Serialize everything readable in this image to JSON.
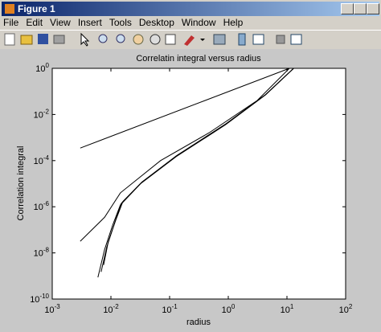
{
  "window": {
    "title": "Figure 1",
    "menu": [
      "File",
      "Edit",
      "View",
      "Insert",
      "Tools",
      "Desktop",
      "Window",
      "Help"
    ]
  },
  "chart_data": {
    "type": "line",
    "title": "Correlatin integral versus radius",
    "x_label": "radius",
    "y_label": "Correlation integral",
    "log_x": true,
    "log_y": true,
    "grid": false,
    "xlim": [
      0.001,
      100
    ],
    "ylim": [
      1e-10,
      1
    ],
    "xticks": [
      {
        "value": 0.001,
        "label": "10",
        "exponent": "-3"
      },
      {
        "value": 0.01,
        "label": "10",
        "exponent": "-2"
      },
      {
        "value": 0.1,
        "label": "10",
        "exponent": "-1"
      },
      {
        "value": 1,
        "label": "10",
        "exponent": "0"
      },
      {
        "value": 10,
        "label": "10",
        "exponent": "1"
      },
      {
        "value": 100,
        "label": "10",
        "exponent": "2"
      }
    ],
    "yticks": [
      {
        "value": 1e-10,
        "label": "10",
        "exponent": "-10"
      },
      {
        "value": 1e-08,
        "label": "10",
        "exponent": "-8"
      },
      {
        "value": 1e-06,
        "label": "10",
        "exponent": "-6"
      },
      {
        "value": 0.0001,
        "label": "10",
        "exponent": "-4"
      },
      {
        "value": 0.01,
        "label": "10",
        "exponent": "-2"
      },
      {
        "value": 1,
        "label": "10",
        "exponent": "0"
      }
    ],
    "series": [
      {
        "color": "#000000",
        "x": [
          0.003,
          11
        ],
        "values": [
          0.00035,
          1
        ]
      },
      {
        "color": "#000000",
        "x": [
          0.003,
          0.0078,
          0.0145,
          0.07,
          0.47,
          3.1,
          11
        ],
        "values": [
          3.2e-08,
          3.5e-07,
          4e-06,
          0.0001,
          0.0016,
          0.04,
          1
        ]
      },
      {
        "color": "#000000",
        "x": [
          0.006,
          0.0078,
          0.0107,
          0.0145,
          0.032,
          0.13,
          0.9,
          4.3,
          13
        ],
        "values": [
          8.7e-10,
          1.4e-08,
          1.6e-07,
          1.2e-06,
          1e-05,
          0.00015,
          0.0036,
          0.07,
          1
        ]
      },
      {
        "color": "#000000",
        "x": [
          0.0068,
          0.0085,
          0.0115,
          0.015,
          0.033,
          0.13,
          0.9,
          4.3,
          13
        ],
        "values": [
          1.5e-09,
          1.8e-08,
          1.9e-07,
          1.4e-06,
          1.1e-05,
          0.00016,
          0.0038,
          0.072,
          1
        ]
      },
      {
        "color": "#000000",
        "x": [
          0.0075,
          0.009,
          0.012,
          0.016,
          0.034,
          0.135,
          0.92,
          4.4,
          13
        ],
        "values": [
          3e-09,
          3e-08,
          2.5e-07,
          1.7e-06,
          1.2e-05,
          0.00017,
          0.004,
          0.075,
          1
        ]
      }
    ]
  }
}
